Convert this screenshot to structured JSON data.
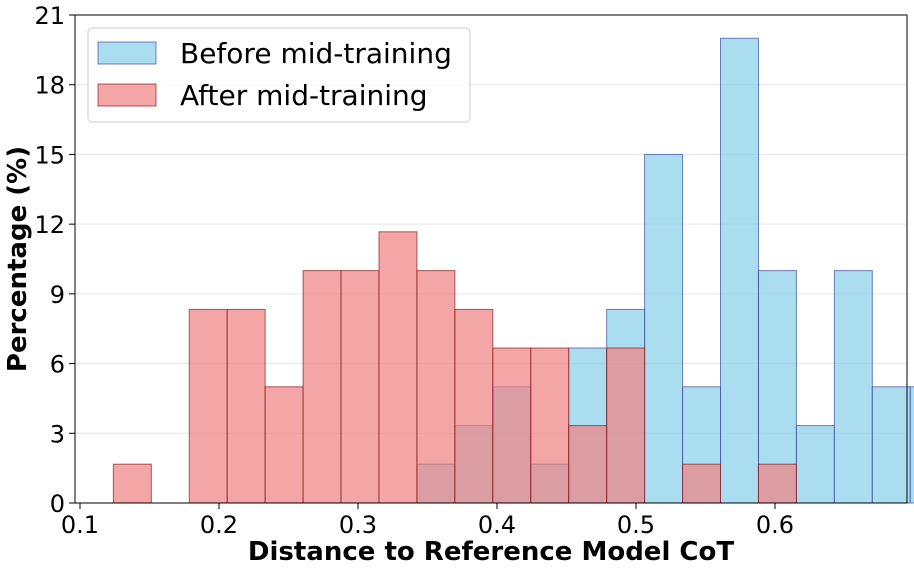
{
  "chart_data": {
    "type": "bar",
    "title": "",
    "xlabel": "Distance to Reference Model CoT",
    "ylabel": "Percentage (%)",
    "xlim": [
      0.1,
      0.67
    ],
    "ylim": [
      0,
      21
    ],
    "xticks": [
      0.1,
      0.2,
      0.3,
      0.4,
      0.5,
      0.6
    ],
    "xtick_labels": [
      "0.1",
      "0.2",
      "0.3",
      "0.4",
      "0.5",
      "0.6"
    ],
    "yticks": [
      0,
      3,
      6,
      9,
      12,
      15,
      18,
      21
    ],
    "ytick_labels": [
      "0",
      "3",
      "6",
      "9",
      "12",
      "15",
      "18",
      "21"
    ],
    "grid": "horizontal",
    "legend_position": "top-left",
    "bin_start": 0.124,
    "bin_width": 0.0273,
    "series": [
      {
        "name": "Before mid-training",
        "color": "#87ceeb",
        "edge_color": "#3b4aa3",
        "values": [
          0,
          0,
          0,
          0,
          0,
          0,
          0,
          0,
          1.67,
          3.33,
          5.0,
          1.67,
          6.67,
          8.33,
          15.0,
          5.0,
          20.0,
          10.0,
          3.33,
          10.0,
          5.0,
          5.0
        ]
      },
      {
        "name": "After mid-training",
        "color": "#f08080",
        "edge_color": "#8b1a1a",
        "values": [
          1.67,
          0,
          8.33,
          8.33,
          5.0,
          10.0,
          10.0,
          11.67,
          10.0,
          8.33,
          6.67,
          6.67,
          3.33,
          6.67,
          0,
          1.67,
          0,
          1.67,
          0,
          0,
          0,
          0
        ]
      }
    ]
  }
}
